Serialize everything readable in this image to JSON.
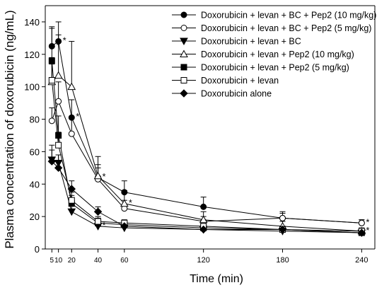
{
  "chart_data": {
    "type": "line",
    "xlabel": "Time (min)",
    "ylabel": "Plasma concentration of doxorubicin (ng/mL)",
    "xlim": [
      0,
      250
    ],
    "ylim": [
      0,
      150
    ],
    "xticks": [
      5,
      10,
      20,
      40,
      60,
      120,
      180,
      240
    ],
    "yticks": [
      0,
      20,
      40,
      60,
      80,
      100,
      120,
      140
    ],
    "legend_position": "top-right",
    "series": [
      {
        "name": "Doxorubicin + levan + BC + Pep2 (10 mg/kg)",
        "marker": "circle",
        "fill": "#000000",
        "x": [
          5,
          10,
          20,
          40,
          60,
          120,
          180,
          240
        ],
        "y": [
          125,
          128,
          81,
          44,
          35,
          26,
          19,
          16
        ],
        "err": [
          12,
          12,
          11,
          8,
          7,
          6,
          4,
          2
        ]
      },
      {
        "name": "Doxorubicin + levan + BC + Pep2 (5 mg/kg)",
        "marker": "circle",
        "fill": "#ffffff",
        "x": [
          5,
          10,
          20,
          40,
          60,
          120,
          180,
          240
        ],
        "y": [
          79,
          91,
          71,
          43,
          25,
          17,
          19,
          16
        ],
        "err": [
          8,
          12,
          10,
          7,
          5,
          3,
          3,
          2
        ]
      },
      {
        "name": "Doxorubicin + levan + BC",
        "marker": "triangle-down",
        "fill": "#000000",
        "x": [
          5,
          10,
          20,
          40,
          60,
          120,
          180,
          240
        ],
        "y": [
          55,
          53,
          23,
          14,
          13,
          12,
          11,
          10
        ],
        "err": [
          6,
          5,
          4,
          2,
          2,
          2,
          2,
          1
        ]
      },
      {
        "name": "Doxorubicin + levan + Pep2 (10 mg/kg)",
        "marker": "triangle-up",
        "fill": "#ffffff",
        "x": [
          5,
          10,
          20,
          40,
          60,
          120,
          180,
          240
        ],
        "y": [
          103,
          107,
          100,
          45,
          28,
          18,
          14,
          11
        ],
        "err": [
          15,
          25,
          28,
          12,
          8,
          5,
          3,
          2
        ]
      },
      {
        "name": "Doxorubicin + levan + Pep2 (5 mg/kg)",
        "marker": "square",
        "fill": "#000000",
        "x": [
          5,
          10,
          20,
          40,
          60,
          120,
          180,
          240
        ],
        "y": [
          116,
          70,
          28,
          16,
          15,
          13,
          12,
          10
        ],
        "err": [
          20,
          12,
          5,
          3,
          2,
          2,
          2,
          1
        ]
      },
      {
        "name": "Doxorubicin + levan",
        "marker": "square",
        "fill": "#ffffff",
        "x": [
          5,
          10,
          20,
          40,
          60,
          120,
          180,
          240
        ],
        "y": [
          104,
          64,
          30,
          17,
          16,
          14,
          12,
          11
        ],
        "err": [
          10,
          8,
          5,
          3,
          2,
          2,
          2,
          1
        ]
      },
      {
        "name": "Doxorubicin alone",
        "marker": "diamond",
        "fill": "#000000",
        "x": [
          5,
          10,
          20,
          40,
          60,
          120,
          180,
          240
        ],
        "y": [
          54,
          50,
          37,
          23,
          14,
          12,
          12,
          10
        ],
        "err": [
          10,
          8,
          5,
          3,
          2,
          2,
          2,
          1
        ]
      }
    ],
    "significance_marks": [
      {
        "x": 5,
        "y": 125,
        "label": "*"
      },
      {
        "x": 10,
        "y": 128,
        "label": "*"
      },
      {
        "x": 20,
        "y": 81,
        "label": "*"
      },
      {
        "x": 40,
        "y": 44,
        "label": "*"
      },
      {
        "x": 40,
        "y": 14,
        "label": "*"
      },
      {
        "x": 60,
        "y": 28,
        "label": "*"
      },
      {
        "x": 240,
        "y": 16,
        "label": "*"
      },
      {
        "x": 240,
        "y": 11,
        "label": "*"
      }
    ]
  }
}
